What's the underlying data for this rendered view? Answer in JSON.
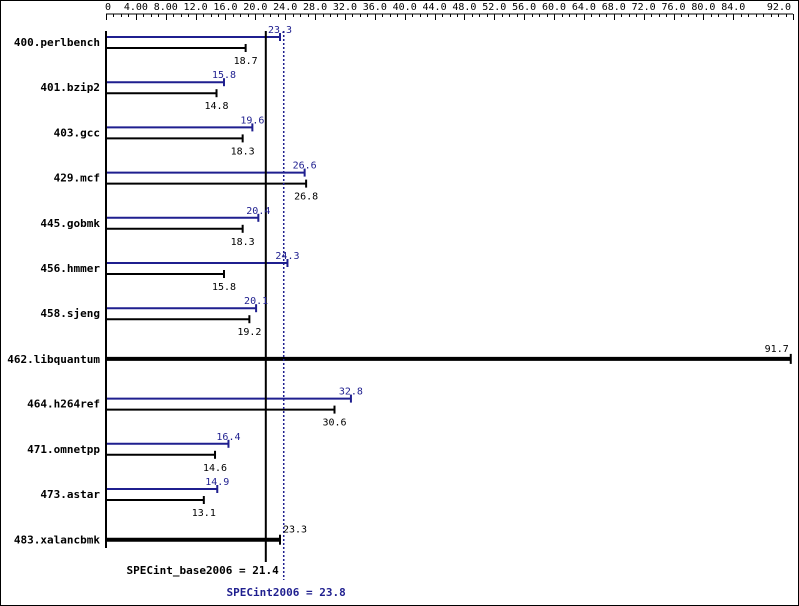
{
  "chart_data": {
    "type": "bar",
    "orientation": "horizontal",
    "xlim": [
      0,
      92
    ],
    "ticks": [
      "0",
      "4.00",
      "8.00",
      "12.0",
      "16.0",
      "20.0",
      "24.0",
      "28.0",
      "32.0",
      "36.0",
      "40.0",
      "44.0",
      "48.0",
      "52.0",
      "56.0",
      "60.0",
      "64.0",
      "68.0",
      "72.0",
      "76.0",
      "80.0",
      "84.0",
      "92.0"
    ],
    "tick_values": [
      0,
      4,
      8,
      12,
      16,
      20,
      24,
      28,
      32,
      36,
      40,
      44,
      48,
      52,
      56,
      60,
      64,
      68,
      72,
      76,
      80,
      84,
      92
    ],
    "categories": [
      "400.perlbench",
      "401.bzip2",
      "403.gcc",
      "429.mcf",
      "445.gobmk",
      "456.hmmer",
      "458.sjeng",
      "462.libquantum",
      "464.h264ref",
      "471.omnetpp",
      "473.astar",
      "483.xalancbmk"
    ],
    "series": [
      {
        "key": "peak",
        "values": [
          23.3,
          15.8,
          19.6,
          26.6,
          20.4,
          24.3,
          20.1,
          91.7,
          32.8,
          16.4,
          14.9,
          23.3
        ],
        "labels": [
          "23.3",
          "15.8",
          "19.6",
          "26.6",
          "20.4",
          "24.3",
          "20.1",
          "91.7",
          "32.8",
          "16.4",
          "14.9",
          "23.3"
        ]
      },
      {
        "key": "base",
        "values": [
          18.7,
          14.8,
          18.3,
          26.8,
          18.3,
          15.8,
          19.2,
          91.7,
          30.6,
          14.6,
          13.1,
          23.3
        ],
        "labels": [
          "18.7",
          "14.8",
          "18.3",
          "26.8",
          "18.3",
          "15.8",
          "19.2",
          "91.7",
          "30.6",
          "14.6",
          "13.1",
          "23.3"
        ]
      }
    ],
    "merged": [
      false,
      false,
      false,
      false,
      false,
      false,
      false,
      true,
      false,
      false,
      false,
      true
    ],
    "summary": {
      "base_value": 21.4,
      "base_text": "SPECint_base2006 = 21.4",
      "peak_value": 23.8,
      "peak_text": "SPECint2006 = 23.8"
    },
    "colors": {
      "peak": "#1f1f8f",
      "base": "#000000"
    },
    "grid": false
  }
}
